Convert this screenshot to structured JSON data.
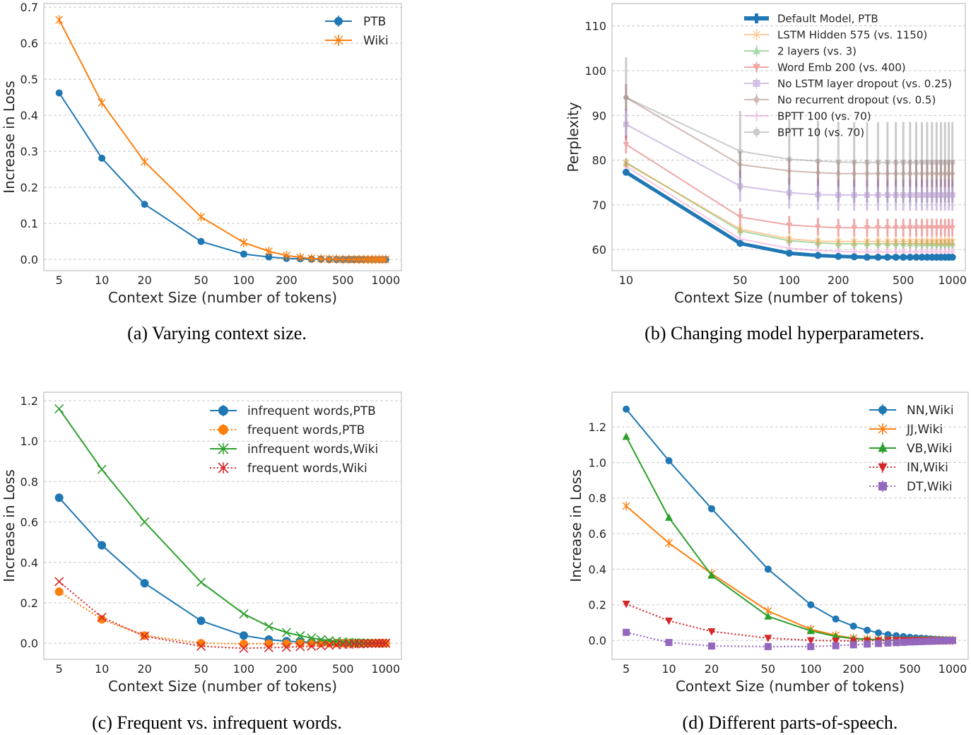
{
  "chart_data": [
    {
      "type": "line",
      "caption": "(a) Varying context size.",
      "xlabel": "Context Size (number of tokens)",
      "ylabel": "Increase in Loss",
      "xscale": "log",
      "xlim": [
        3.9,
        1290
      ],
      "ylim": [
        -0.031,
        0.71
      ],
      "xticks": [
        "5",
        "10",
        "20",
        "50",
        "100",
        "200",
        "500",
        "1000"
      ],
      "yticks": [
        "0.0",
        "0.1",
        "0.2",
        "0.3",
        "0.4",
        "0.5",
        "0.6",
        "0.7"
      ],
      "grid": "horizontal dashed",
      "legend_position": "top-right",
      "x": [
        5,
        10,
        20,
        50,
        100,
        150,
        200,
        250,
        300,
        350,
        400,
        450,
        500,
        550,
        600,
        650,
        700,
        750,
        800,
        850,
        900,
        950,
        1000
      ],
      "series": [
        {
          "name": "PTB",
          "color": "#1f77b4",
          "linestyle": "solid",
          "marker": "circle",
          "values": [
            0.462,
            0.281,
            0.153,
            0.05,
            0.015,
            0.007,
            0.003,
            0.002,
            0.001,
            0.001,
            0,
            0,
            0,
            0,
            0,
            0,
            0,
            0,
            0,
            0,
            0,
            0,
            0
          ]
        },
        {
          "name": "Wiki",
          "color": "#ff7f0e",
          "linestyle": "solid",
          "marker": "star",
          "values": [
            0.665,
            0.435,
            0.271,
            0.118,
            0.047,
            0.023,
            0.011,
            0.006,
            0.003,
            0.002,
            0.001,
            0.001,
            0,
            0,
            0,
            0,
            0,
            0,
            0,
            0,
            0,
            0,
            0
          ]
        }
      ]
    },
    {
      "type": "line",
      "caption": "(b) Changing model hyperparameters.",
      "xlabel": "Context Size (number of tokens)",
      "ylabel": "Perplexity",
      "xscale": "log",
      "xlim": [
        8.2,
        1200
      ],
      "ylim": [
        55.3,
        115
      ],
      "xticks": [
        "10",
        "50",
        "100",
        "200",
        "500",
        "1000"
      ],
      "yticks": [
        "60",
        "70",
        "80",
        "90",
        "100",
        "110"
      ],
      "grid": "horizontal dashed",
      "legend_position": "top-right",
      "x": [
        10,
        50,
        100,
        150,
        200,
        250,
        300,
        350,
        400,
        450,
        500,
        550,
        600,
        650,
        700,
        750,
        800,
        850,
        900,
        950,
        1000
      ],
      "series": [
        {
          "name": "Default Model, PTB",
          "color": "#1f77b4",
          "linestyle": "solid",
          "marker": "circle",
          "alpha": 1,
          "error": 0.3,
          "values": [
            77.3,
            61.4,
            59.2,
            58.7,
            58.5,
            58.4,
            58.3,
            58.3,
            58.3,
            58.3,
            58.3,
            58.3,
            58.3,
            58.3,
            58.3,
            58.3,
            58.3,
            58.3,
            58.3,
            58.3,
            58.3
          ]
        },
        {
          "name": "LSTM Hidden 575 (vs. 1150)",
          "color": "#ff7f0e",
          "linestyle": "solid",
          "marker": "star",
          "alpha": 0.4,
          "error": 1,
          "values": [
            79.3,
            64.6,
            62.4,
            61.9,
            61.8,
            61.8,
            61.8,
            61.8,
            61.8,
            61.8,
            61.8,
            61.8,
            61.8,
            61.8,
            61.8,
            61.8,
            61.8,
            61.8,
            61.8,
            61.8,
            61.8
          ]
        },
        {
          "name": "2 layers (vs. 3)",
          "color": "#2ca02c",
          "linestyle": "solid",
          "marker": "triangle-up",
          "alpha": 0.4,
          "error": 1,
          "values": [
            79.5,
            64.2,
            62.0,
            61.5,
            61.3,
            61.3,
            61.3,
            61.3,
            61.3,
            61.3,
            61.3,
            61.3,
            61.3,
            61.3,
            61.3,
            61.3,
            61.3,
            61.3,
            61.3,
            61.3,
            61.3
          ]
        },
        {
          "name": "Word Emb 200 (vs. 400)",
          "color": "#d62728",
          "linestyle": "solid",
          "marker": "triangle-down",
          "alpha": 0.4,
          "error": 2,
          "values": [
            83.5,
            67.3,
            65.5,
            65.1,
            64.9,
            64.9,
            64.9,
            64.9,
            64.9,
            64.9,
            64.9,
            64.9,
            64.9,
            64.9,
            64.9,
            64.9,
            64.9,
            64.9,
            64.9,
            64.9,
            64.9
          ]
        },
        {
          "name": "No LSTM layer dropout (vs. 0.25)",
          "color": "#9467bd",
          "linestyle": "solid",
          "marker": "square",
          "alpha": 0.4,
          "error": 3.5,
          "values": [
            88.0,
            74.2,
            72.7,
            72.3,
            72.2,
            72.2,
            72.2,
            72.2,
            72.2,
            72.2,
            72.2,
            72.2,
            72.2,
            72.2,
            72.2,
            72.2,
            72.2,
            72.2,
            72.2,
            72.2,
            72.2
          ]
        },
        {
          "name": "No recurrent dropout (vs. 0.5)",
          "color": "#8c564b",
          "linestyle": "solid",
          "marker": "diamond",
          "alpha": 0.4,
          "error": 3,
          "values": [
            94.0,
            79.0,
            77.6,
            77.2,
            77.0,
            77.0,
            77.0,
            77.0,
            77.0,
            77.0,
            77.0,
            77.0,
            77.0,
            77.0,
            77.0,
            77.0,
            77.0,
            77.0,
            77.0,
            77.0,
            77.0
          ]
        },
        {
          "name": "BPTT 100 (vs. 70)",
          "color": "#e377c2",
          "linestyle": "solid",
          "marker": "plus",
          "alpha": 0.4,
          "error": 1,
          "values": [
            78.6,
            62.4,
            60.3,
            59.8,
            59.6,
            59.5,
            59.5,
            59.5,
            59.5,
            59.5,
            59.5,
            59.5,
            59.5,
            59.5,
            59.5,
            59.5,
            59.5,
            59.5,
            59.5,
            59.5,
            59.5
          ]
        },
        {
          "name": "BPTT 10 (vs. 70)",
          "color": "#7f7f7f",
          "linestyle": "solid",
          "marker": "circle",
          "alpha": 0.4,
          "error": 9,
          "values": [
            94.0,
            82.0,
            80.2,
            79.8,
            79.6,
            79.5,
            79.5,
            79.5,
            79.5,
            79.5,
            79.5,
            79.5,
            79.5,
            79.5,
            79.5,
            79.5,
            79.5,
            79.5,
            79.5,
            79.5,
            79.5
          ]
        }
      ]
    },
    {
      "type": "line",
      "caption": "(c) Frequent vs. infrequent words.",
      "xlabel": "Context Size (number of tokens)",
      "ylabel": "Increase in Loss",
      "xscale": "log",
      "xlim": [
        3.9,
        1290
      ],
      "ylim": [
        -0.08,
        1.242
      ],
      "xticks": [
        "5",
        "10",
        "20",
        "50",
        "100",
        "200",
        "500",
        "1000"
      ],
      "yticks": [
        "0.0",
        "0.2",
        "0.4",
        "0.6",
        "0.8",
        "1.0",
        "1.2"
      ],
      "grid": "horizontal dashed",
      "legend_position": "top-right",
      "x": [
        5,
        10,
        20,
        50,
        100,
        150,
        200,
        250,
        300,
        350,
        400,
        450,
        500,
        550,
        600,
        650,
        700,
        750,
        800,
        850,
        900,
        950,
        1000
      ],
      "series": [
        {
          "name": "infrequent words,PTB",
          "color": "#1f77b4",
          "linestyle": "solid",
          "marker": "circle",
          "values": [
            0.72,
            0.485,
            0.297,
            0.111,
            0.038,
            0.018,
            0.01,
            0.007,
            0.005,
            0.003,
            0.002,
            0.001,
            0,
            0,
            0,
            0,
            0,
            0,
            0,
            0,
            0,
            0,
            0
          ]
        },
        {
          "name": "frequent words,PTB",
          "color": "#ff7f0e",
          "linestyle": "dotted",
          "marker": "circle",
          "values": [
            0.255,
            0.118,
            0.038,
            0.0,
            -0.003,
            -0.002,
            -0.002,
            -0.001,
            -0.001,
            0,
            0,
            0,
            0,
            0,
            0,
            0,
            0,
            0,
            0,
            0,
            0,
            0,
            0
          ]
        },
        {
          "name": "infrequent words,Wiki",
          "color": "#2ca02c",
          "linestyle": "solid",
          "marker": "x",
          "values": [
            1.16,
            0.86,
            0.6,
            0.302,
            0.145,
            0.083,
            0.053,
            0.037,
            0.026,
            0.018,
            0.013,
            0.009,
            0.006,
            0.004,
            0.003,
            0.002,
            0.001,
            0,
            0,
            0,
            0,
            0,
            0
          ]
        },
        {
          "name": "frequent words,Wiki",
          "color": "#d62728",
          "linestyle": "dotted",
          "marker": "x",
          "values": [
            0.305,
            0.128,
            0.035,
            -0.015,
            -0.025,
            -0.022,
            -0.02,
            -0.017,
            -0.015,
            -0.012,
            -0.01,
            -0.008,
            -0.006,
            -0.005,
            -0.004,
            -0.003,
            -0.002,
            -0.002,
            -0.001,
            -0.001,
            0,
            0,
            0
          ]
        }
      ]
    },
    {
      "type": "line",
      "caption": "(d) Different parts-of-speech.",
      "xlabel": "Context Size (number of tokens)",
      "ylabel": "Increase in Loss",
      "xscale": "log",
      "xlim": [
        3.97,
        1287
      ],
      "ylim": [
        -0.107,
        1.395
      ],
      "xticks": [
        "5",
        "10",
        "20",
        "50",
        "100",
        "200",
        "500",
        "1000"
      ],
      "yticks": [
        "0.0",
        "0.2",
        "0.4",
        "0.6",
        "0.8",
        "1.0",
        "1.2"
      ],
      "grid": "horizontal dashed",
      "legend_position": "top-right",
      "x": [
        5,
        10,
        20,
        50,
        100,
        150,
        200,
        250,
        300,
        350,
        400,
        450,
        500,
        550,
        600,
        650,
        700,
        750,
        800,
        850,
        900,
        950,
        1000
      ],
      "series": [
        {
          "name": "NN,Wiki",
          "color": "#1f77b4",
          "linestyle": "solid",
          "marker": "circle",
          "values": [
            1.3,
            1.01,
            0.74,
            0.4,
            0.2,
            0.12,
            0.08,
            0.057,
            0.042,
            0.032,
            0.026,
            0.021,
            0.017,
            0.014,
            0.012,
            0.01,
            0.008,
            0.006,
            0.005,
            0.004,
            0.003,
            0.002,
            0.002
          ]
        },
        {
          "name": "JJ,Wiki",
          "color": "#ff7f0e",
          "linestyle": "solid",
          "marker": "star",
          "values": [
            0.755,
            0.547,
            0.375,
            0.165,
            0.062,
            0.028,
            0.012,
            0.007,
            0.004,
            0.002,
            0.001,
            0,
            0,
            0,
            0,
            0,
            0,
            0,
            0,
            0,
            0,
            0,
            0
          ]
        },
        {
          "name": "VB,Wiki",
          "color": "#2ca02c",
          "linestyle": "solid",
          "marker": "triangle-up",
          "values": [
            1.145,
            0.69,
            0.365,
            0.135,
            0.053,
            0.022,
            0.01,
            0.005,
            0.003,
            0.001,
            0,
            0,
            0,
            0,
            0,
            0,
            0,
            0,
            0,
            0,
            0,
            0,
            0
          ]
        },
        {
          "name": "IN,Wiki",
          "color": "#d62728",
          "linestyle": "dotted",
          "marker": "triangle-down",
          "values": [
            0.205,
            0.11,
            0.05,
            0.013,
            0.0,
            -0.002,
            -0.002,
            -0.002,
            -0.001,
            0,
            0,
            0,
            0,
            0,
            0,
            0,
            0,
            0,
            0,
            0,
            0,
            0,
            0
          ]
        },
        {
          "name": "DT,Wiki",
          "color": "#9467bd",
          "linestyle": "dotted",
          "marker": "square",
          "values": [
            0.045,
            -0.012,
            -0.032,
            -0.035,
            -0.035,
            -0.03,
            -0.025,
            -0.021,
            -0.018,
            -0.015,
            -0.013,
            -0.011,
            -0.009,
            -0.008,
            -0.007,
            -0.006,
            -0.005,
            -0.004,
            -0.003,
            -0.003,
            -0.002,
            -0.002,
            -0.001
          ]
        }
      ]
    }
  ]
}
